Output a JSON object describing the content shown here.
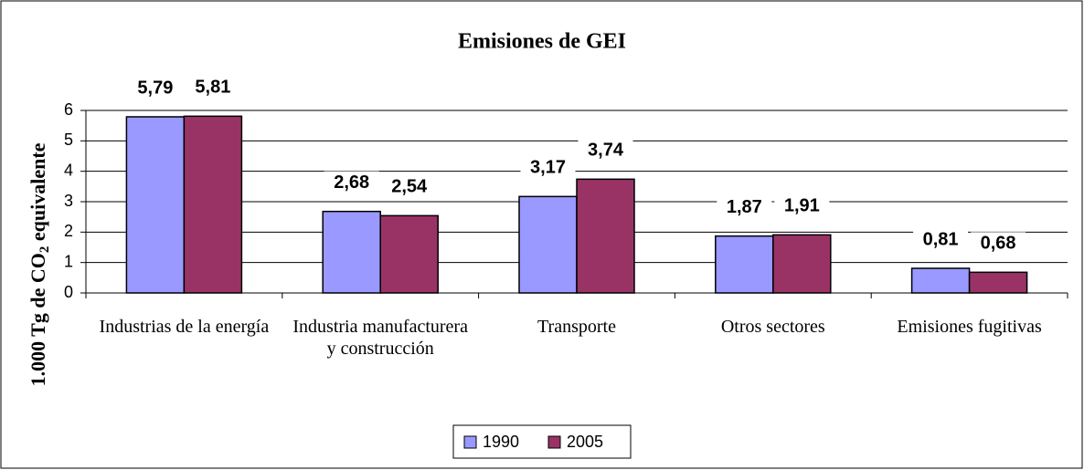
{
  "chart_data": {
    "type": "bar",
    "title": "Emisiones de GEI",
    "y_label": {
      "text": "1.000 Tg de CO",
      "sub": "2",
      "after": " equivalente"
    },
    "categories": [
      "Industrias de la energía",
      "Industria manufacturera y construcción",
      "Transporte",
      "Otros sectores",
      "Emisiones fugitivas"
    ],
    "series": [
      {
        "name": "1990",
        "color": "#9999ff",
        "values": [
          5.79,
          2.68,
          3.17,
          1.87,
          0.81
        ],
        "value_labels": [
          "5,79",
          "2,68",
          "3,17",
          "1,87",
          "0,81"
        ]
      },
      {
        "name": "2005",
        "color": "#993366",
        "values": [
          5.81,
          2.54,
          3.74,
          1.91,
          0.68
        ],
        "value_labels": [
          "5,81",
          "2,54",
          "3,74",
          "1,91",
          "0,68"
        ]
      }
    ],
    "ylim": [
      0,
      6
    ],
    "yticks": [
      0,
      1,
      2,
      3,
      4,
      5,
      6
    ],
    "grid": true,
    "legend": "bottom"
  }
}
